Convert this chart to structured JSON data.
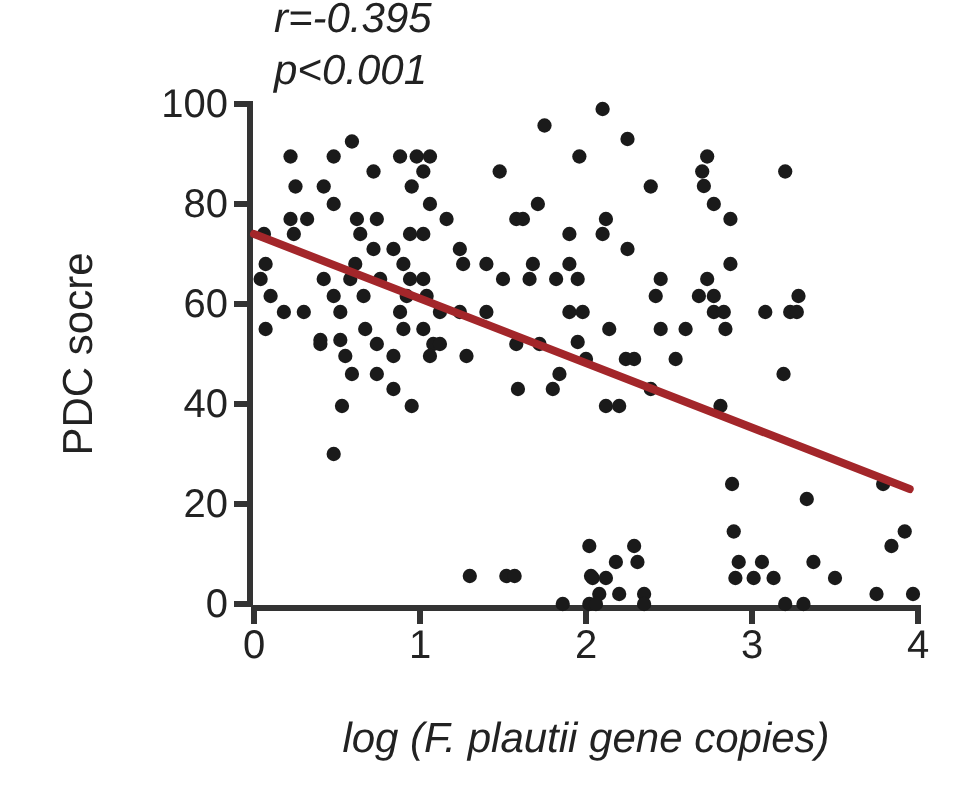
{
  "chart_data": {
    "type": "scatter",
    "xlabel": "log (F. plautii gene copies)",
    "ylabel": "PDC socre",
    "annotations": [
      "r=-0.395",
      "p<0.001"
    ],
    "xlim": [
      0,
      4
    ],
    "xticks": [
      0,
      1,
      2,
      3,
      4
    ],
    "ylim": [
      0,
      100
    ],
    "yticks": [
      0,
      20,
      40,
      60,
      80,
      100
    ],
    "grid": false,
    "series": [
      {
        "marker": "circle",
        "color": "#1a1a1a",
        "x": [
          0.22,
          0.48,
          0.59,
          0.88,
          0.98,
          1.06,
          0.72,
          1.02,
          0.25,
          0.42,
          0.95,
          0.48,
          1.06,
          0.22,
          0.32,
          0.62,
          0.74,
          1.16,
          0.06,
          0.24,
          0.64,
          0.94,
          1.02,
          0.72,
          0.84,
          1.24,
          0.07,
          0.61,
          0.9,
          1.26,
          0.04,
          0.42,
          0.58,
          0.76,
          0.94,
          1.02,
          0.1,
          0.48,
          0.66,
          0.92,
          1.04,
          0.18,
          0.3,
          0.52,
          0.88,
          1.12,
          1.24,
          0.07,
          0.67,
          0.9,
          1.02,
          0.4,
          0.74,
          1.08,
          0.4,
          0.52,
          0.55,
          0.84,
          1.06,
          1.28,
          1.12,
          0.48,
          0.53,
          0.95,
          0.84,
          0.74,
          0.59,
          1.59,
          1.8,
          1.84,
          1.3,
          1.52,
          1.57,
          2.02,
          2.03,
          1.86,
          2.02,
          2.1,
          1.75,
          2.25,
          1.96,
          1.48,
          2.39,
          1.71,
          1.58,
          1.62,
          2.12,
          1.9,
          2.1,
          2.25,
          1.4,
          1.68,
          1.9,
          1.5,
          1.66,
          1.82,
          1.95,
          2.45,
          2.42,
          1.4,
          1.9,
          1.98,
          2.14,
          2.45,
          2.6,
          1.58,
          1.72,
          1.95,
          2.73,
          2.7,
          3.2,
          2.71,
          2.77,
          2.87,
          2.87,
          2.73,
          2.68,
          2.77,
          2.77,
          2.83,
          3.08,
          3.23,
          3.27,
          3.28,
          2.84,
          2.0,
          2.24,
          2.29,
          2.54,
          3.19,
          2.12,
          2.2,
          2.39,
          2.81,
          2.88,
          3.33,
          3.79,
          2.89,
          3.92,
          3.84,
          2.29,
          2.18,
          2.31,
          2.92,
          3.06,
          3.37,
          2.04,
          2.12,
          2.35,
          2.9,
          3.01,
          3.13,
          3.5,
          3.75,
          3.97,
          2.08,
          2.2,
          2.06,
          3.2,
          3.31,
          2.35
        ],
        "values": [
          89.5,
          89.5,
          92.5,
          89.5,
          89.5,
          89.5,
          86.5,
          86.5,
          83.5,
          83.5,
          83.5,
          80,
          80,
          77,
          77,
          77,
          77,
          77,
          74,
          74,
          74,
          74,
          74,
          71,
          71,
          71,
          68,
          68,
          68,
          68,
          65,
          65,
          65,
          65,
          65,
          65,
          61.6,
          61.6,
          61.6,
          61.6,
          61.6,
          58.4,
          58.4,
          58.4,
          58.4,
          58.4,
          58.4,
          55,
          55,
          55,
          55,
          52,
          52,
          52,
          52.8,
          52.8,
          49.6,
          49.6,
          49.6,
          49.6,
          52,
          30,
          39.6,
          39.6,
          43,
          46,
          46,
          43,
          43,
          46,
          5.6,
          5.6,
          5.6,
          11.6,
          5.6,
          0,
          0,
          99,
          95.7,
          93,
          89.5,
          86.5,
          83.5,
          80,
          77,
          77,
          77,
          74,
          74,
          71,
          68,
          68,
          68,
          65,
          65,
          65,
          65,
          65,
          61.6,
          58.4,
          58.4,
          58.4,
          55,
          55,
          55,
          52,
          52,
          52.4,
          89.5,
          86.5,
          86.5,
          83.6,
          80,
          77,
          68,
          65,
          61.6,
          61.6,
          58.4,
          58.4,
          58.4,
          58.4,
          58.4,
          61.6,
          55,
          49,
          49,
          49,
          49,
          46,
          39.6,
          39.6,
          43,
          39.6,
          24,
          21,
          24,
          14.5,
          14.5,
          11.6,
          11.6,
          8.4,
          8.4,
          8.4,
          8.4,
          8.4,
          5.2,
          5.2,
          2,
          5.2,
          5.2,
          5.2,
          5.2,
          2,
          2,
          2,
          2,
          0,
          0,
          0,
          0
        ]
      },
      {
        "type": "line",
        "color": "#a3262a",
        "x": [
          0,
          3.95
        ],
        "values": [
          74,
          23
        ]
      }
    ]
  }
}
